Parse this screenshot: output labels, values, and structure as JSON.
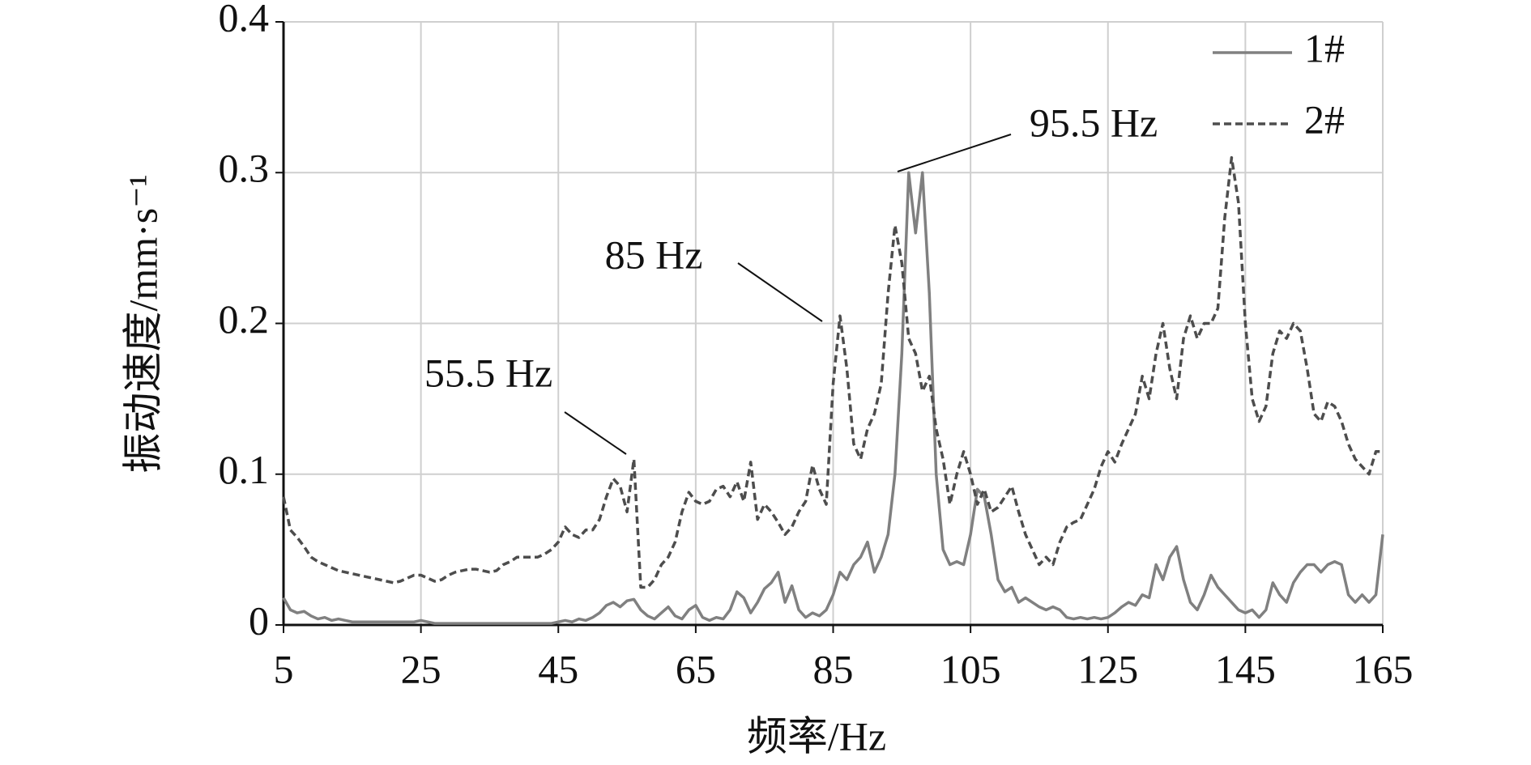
{
  "chart_data": {
    "type": "line",
    "x_label": "频率/Hz",
    "y_label": "振动速度/mm·s⁻¹",
    "x": [
      5,
      6,
      7,
      8,
      9,
      10,
      11,
      12,
      13,
      14,
      15,
      16,
      17,
      18,
      19,
      20,
      21,
      22,
      23,
      24,
      25,
      26,
      27,
      28,
      29,
      30,
      31,
      32,
      33,
      34,
      35,
      36,
      37,
      38,
      39,
      40,
      41,
      42,
      43,
      44,
      45,
      46,
      47,
      48,
      49,
      50,
      51,
      52,
      53,
      54,
      55,
      56,
      57,
      58,
      59,
      60,
      61,
      62,
      63,
      64,
      65,
      66,
      67,
      68,
      69,
      70,
      71,
      72,
      73,
      74,
      75,
      76,
      77,
      78,
      79,
      80,
      81,
      82,
      83,
      84,
      85,
      86,
      87,
      88,
      89,
      90,
      91,
      92,
      93,
      94,
      95,
      96,
      97,
      98,
      99,
      100,
      101,
      102,
      103,
      104,
      105,
      106,
      107,
      108,
      109,
      110,
      111,
      112,
      113,
      114,
      115,
      116,
      117,
      118,
      119,
      120,
      121,
      122,
      123,
      124,
      125,
      126,
      127,
      128,
      129,
      130,
      131,
      132,
      133,
      134,
      135,
      136,
      137,
      138,
      139,
      140,
      141,
      142,
      143,
      144,
      145,
      146,
      147,
      148,
      149,
      150,
      151,
      152,
      153,
      154,
      155,
      156,
      157,
      158,
      159,
      160,
      161,
      162,
      163,
      164,
      165
    ],
    "series": [
      {
        "name": "1#",
        "color": "#808080",
        "line_style": "solid",
        "values": [
          0.018,
          0.01,
          0.008,
          0.009,
          0.006,
          0.004,
          0.005,
          0.003,
          0.004,
          0.003,
          0.002,
          0.002,
          0.002,
          0.002,
          0.002,
          0.002,
          0.002,
          0.002,
          0.002,
          0.002,
          0.003,
          0.002,
          0.001,
          0.001,
          0.001,
          0.001,
          0.001,
          0.001,
          0.001,
          0.001,
          0.001,
          0.001,
          0.001,
          0.001,
          0.001,
          0.001,
          0.001,
          0.001,
          0.001,
          0.001,
          0.002,
          0.003,
          0.002,
          0.004,
          0.003,
          0.005,
          0.008,
          0.013,
          0.015,
          0.012,
          0.016,
          0.017,
          0.01,
          0.006,
          0.004,
          0.008,
          0.012,
          0.006,
          0.004,
          0.01,
          0.013,
          0.005,
          0.003,
          0.005,
          0.004,
          0.01,
          0.022,
          0.018,
          0.008,
          0.015,
          0.024,
          0.028,
          0.035,
          0.015,
          0.026,
          0.01,
          0.005,
          0.008,
          0.006,
          0.01,
          0.02,
          0.035,
          0.03,
          0.04,
          0.045,
          0.055,
          0.035,
          0.045,
          0.06,
          0.1,
          0.18,
          0.3,
          0.26,
          0.3,
          0.22,
          0.1,
          0.05,
          0.04,
          0.042,
          0.04,
          0.06,
          0.09,
          0.085,
          0.06,
          0.03,
          0.022,
          0.025,
          0.015,
          0.018,
          0.015,
          0.012,
          0.01,
          0.012,
          0.01,
          0.005,
          0.004,
          0.005,
          0.004,
          0.005,
          0.004,
          0.005,
          0.008,
          0.012,
          0.015,
          0.013,
          0.02,
          0.018,
          0.04,
          0.03,
          0.045,
          0.052,
          0.03,
          0.015,
          0.01,
          0.02,
          0.033,
          0.025,
          0.02,
          0.015,
          0.01,
          0.008,
          0.01,
          0.005,
          0.01,
          0.028,
          0.02,
          0.015,
          0.028,
          0.035,
          0.04,
          0.04,
          0.035,
          0.04,
          0.042,
          0.04,
          0.02,
          0.015,
          0.02,
          0.015,
          0.02,
          0.06
        ]
      },
      {
        "name": "2#",
        "color": "#4d4d4d",
        "line_style": "dashed",
        "values": [
          0.085,
          0.063,
          0.058,
          0.052,
          0.045,
          0.042,
          0.04,
          0.038,
          0.036,
          0.035,
          0.034,
          0.033,
          0.032,
          0.031,
          0.03,
          0.029,
          0.028,
          0.029,
          0.031,
          0.033,
          0.033,
          0.031,
          0.029,
          0.03,
          0.033,
          0.035,
          0.036,
          0.037,
          0.037,
          0.036,
          0.035,
          0.036,
          0.04,
          0.042,
          0.045,
          0.045,
          0.045,
          0.045,
          0.047,
          0.05,
          0.055,
          0.065,
          0.06,
          0.058,
          0.063,
          0.063,
          0.07,
          0.085,
          0.097,
          0.092,
          0.075,
          0.11,
          0.025,
          0.025,
          0.03,
          0.04,
          0.045,
          0.055,
          0.075,
          0.088,
          0.082,
          0.08,
          0.082,
          0.09,
          0.092,
          0.085,
          0.095,
          0.082,
          0.108,
          0.07,
          0.08,
          0.075,
          0.068,
          0.06,
          0.065,
          0.075,
          0.082,
          0.106,
          0.09,
          0.08,
          0.16,
          0.205,
          0.17,
          0.12,
          0.11,
          0.13,
          0.14,
          0.16,
          0.22,
          0.265,
          0.24,
          0.19,
          0.18,
          0.155,
          0.165,
          0.13,
          0.11,
          0.08,
          0.1,
          0.115,
          0.1,
          0.08,
          0.09,
          0.075,
          0.078,
          0.085,
          0.092,
          0.075,
          0.06,
          0.05,
          0.04,
          0.045,
          0.04,
          0.055,
          0.065,
          0.068,
          0.07,
          0.08,
          0.09,
          0.105,
          0.115,
          0.108,
          0.12,
          0.13,
          0.14,
          0.165,
          0.15,
          0.18,
          0.2,
          0.17,
          0.15,
          0.19,
          0.205,
          0.19,
          0.2,
          0.2,
          0.21,
          0.27,
          0.31,
          0.28,
          0.2,
          0.15,
          0.135,
          0.145,
          0.18,
          0.195,
          0.19,
          0.2,
          0.195,
          0.17,
          0.14,
          0.135,
          0.148,
          0.145,
          0.135,
          0.12,
          0.11,
          0.105,
          0.1,
          0.115,
          0.115
        ]
      }
    ],
    "xlim": [
      5,
      165
    ],
    "xticks": [
      5,
      25,
      45,
      65,
      85,
      105,
      125,
      145,
      165
    ],
    "ylim": [
      0,
      0.4
    ],
    "yticks": [
      0,
      0.1,
      0.2,
      0.3,
      0.4
    ],
    "grid": true,
    "legend": "upper right",
    "annotations": [
      {
        "text": "55.5 Hz"
      },
      {
        "text": "85 Hz"
      },
      {
        "text": "95.5 Hz"
      }
    ]
  }
}
